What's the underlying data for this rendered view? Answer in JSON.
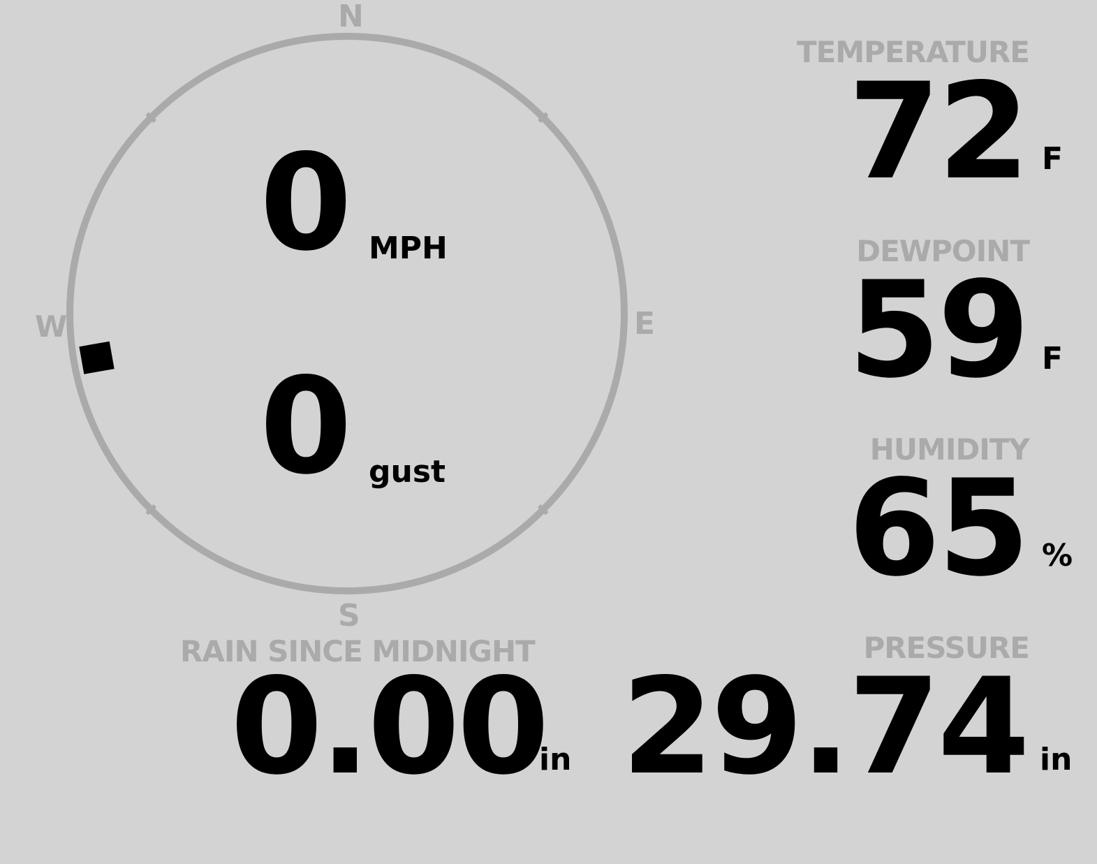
{
  "colors": {
    "background": "#d3d3d3",
    "label": "#aaaaaa",
    "value": "#000000",
    "dial": "#aaaaaa"
  },
  "wind": {
    "speed": "0",
    "speed_unit": "MPH",
    "gust": "0",
    "gust_unit": "gust",
    "direction_deg": 260,
    "cardinals": {
      "n": "N",
      "e": "E",
      "s": "S",
      "w": "W"
    }
  },
  "temperature": {
    "label": "TEMPERATURE",
    "value": "72",
    "unit": "F"
  },
  "dewpoint": {
    "label": "DEWPOINT",
    "value": "59",
    "unit": "F"
  },
  "humidity": {
    "label": "HUMIDITY",
    "value": "65",
    "unit": "%"
  },
  "pressure": {
    "label": "PRESSURE",
    "value": "29.74",
    "unit": "in"
  },
  "rain": {
    "label": "RAIN SINCE MIDNIGHT",
    "value": "0.00",
    "unit": "in"
  }
}
